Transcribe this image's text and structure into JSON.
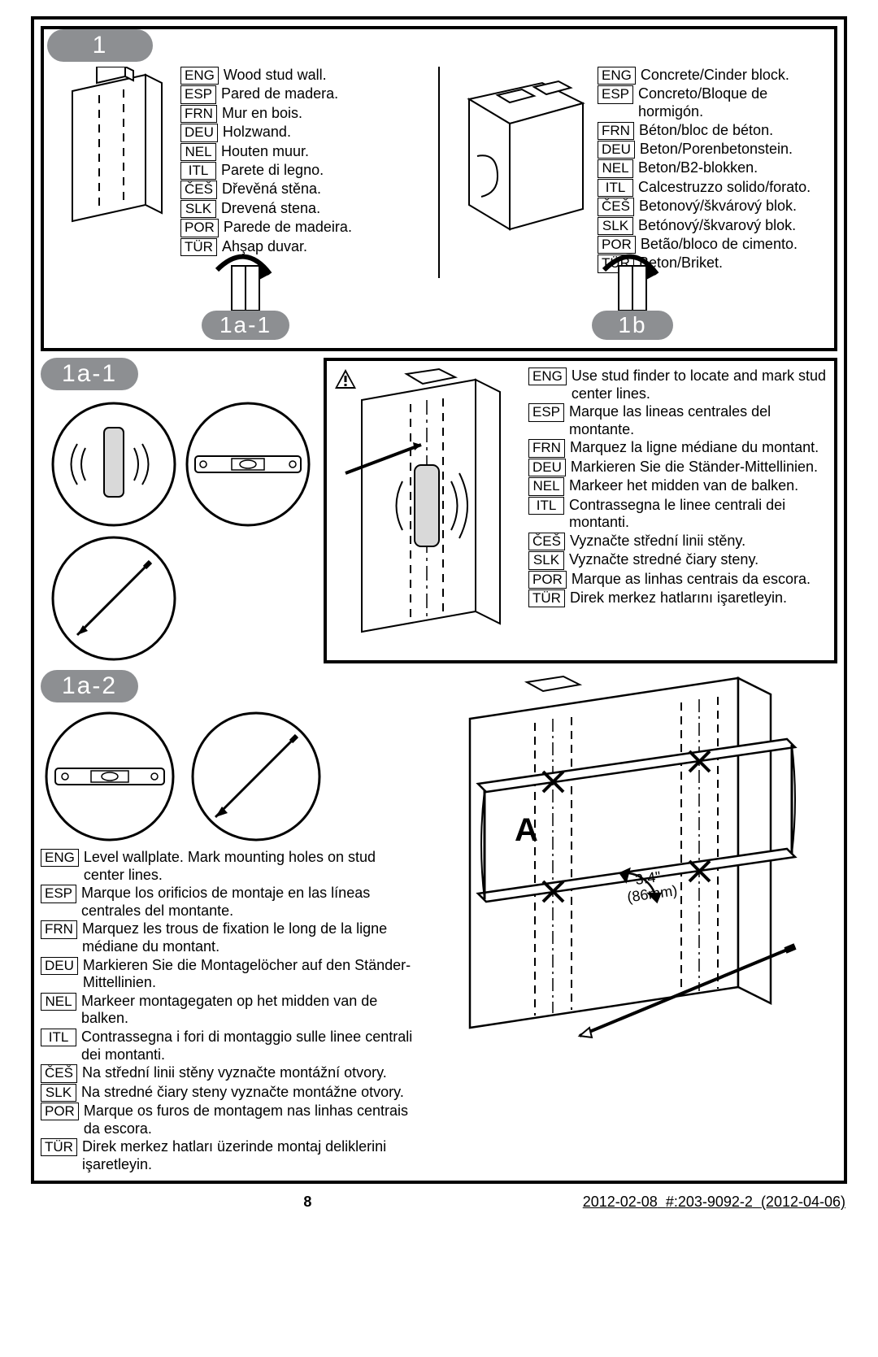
{
  "labels": {
    "step1": "1",
    "step1a1": "1a-1",
    "step1b": "1b",
    "step1a1_badge": "1a-1",
    "step1a2_badge": "1a-2",
    "letterA": "A",
    "dim_text1": "3.4\"",
    "dim_text2": "(86mm)"
  },
  "codes": [
    "ENG",
    "ESP",
    "FRN",
    "DEU",
    "NEL",
    "ITL",
    "ČEŠ",
    "SLK",
    "POR",
    "TÜR"
  ],
  "wood_wall": {
    "ENG": "Wood stud wall.",
    "ESP": "Pared de madera.",
    "FRN": "Mur en bois.",
    "DEU": "Holzwand.",
    "NEL": "Houten muur.",
    "ITL": "Parete di legno.",
    "ČEŠ": "Dřevěná stěna.",
    "SLK": "Drevená stena.",
    "POR": "Parede de madeira.",
    "TÜR": "Ahşap duvar."
  },
  "concrete_wall": {
    "ENG": "Concrete/Cinder block.",
    "ESP": "Concreto/Bloque de hormigón.",
    "FRN": "Béton/bloc de béton.",
    "DEU": "Beton/Porenbetonstein.",
    "NEL": "Beton/B2-blokken.",
    "ITL": "Calcestruzzo solido/forato.",
    "ČEŠ": "Betonový/škvárový blok.",
    "SLK": "Betónový/škvarový blok.",
    "POR": "Betão/bloco de cimento.",
    "TÜR": "Beton/Briket."
  },
  "stud_finder": {
    "ENG": "Use stud finder to locate and mark stud center lines.",
    "ESP": "Marque las lineas centrales del montante.",
    "FRN": "Marquez la ligne médiane du montant.",
    "DEU": "Markieren Sie die Ständer-Mittellinien.",
    "NEL": "Markeer het midden van de balken.",
    "ITL": "Contrassegna le linee centrali dei montanti.",
    "ČEŠ": "Vyznačte střední linii stěny.",
    "SLK": "Vyznačte stredné čiary steny.",
    "POR": "Marque as linhas centrais da escora.",
    "TÜR": "Direk merkez hatlarını işaretleyin."
  },
  "level_wallplate": {
    "ENG": "Level wallplate. Mark mounting holes on stud center lines.",
    "ESP": "Marque los orificios de montaje en las líneas centrales del montante.",
    "FRN": "Marquez les trous de fixation le long de la ligne médiane du montant.",
    "DEU": "Markieren Sie die Montagelöcher auf den Ständer-Mittellinien.",
    "NEL": "Markeer montagegaten op het midden van de balken.",
    "ITL": "Contrassegna i fori di montaggio sulle linee centrali dei montanti.",
    "ČEŠ": "Na střední linii stěny vyznačte montážní otvory.",
    "SLK": "Na stredné čiary steny vyznačte montážne otvory.",
    "POR": "Marque os furos de montagem nas linhas centrais da escora.",
    "TÜR": "Direk merkez hatları üzerinde montaj deliklerini işaretleyin."
  },
  "footer": {
    "page": "8",
    "date": "2012-02-08",
    "doc": "#:203-9092-2",
    "rev": "(2012-04-06)"
  }
}
